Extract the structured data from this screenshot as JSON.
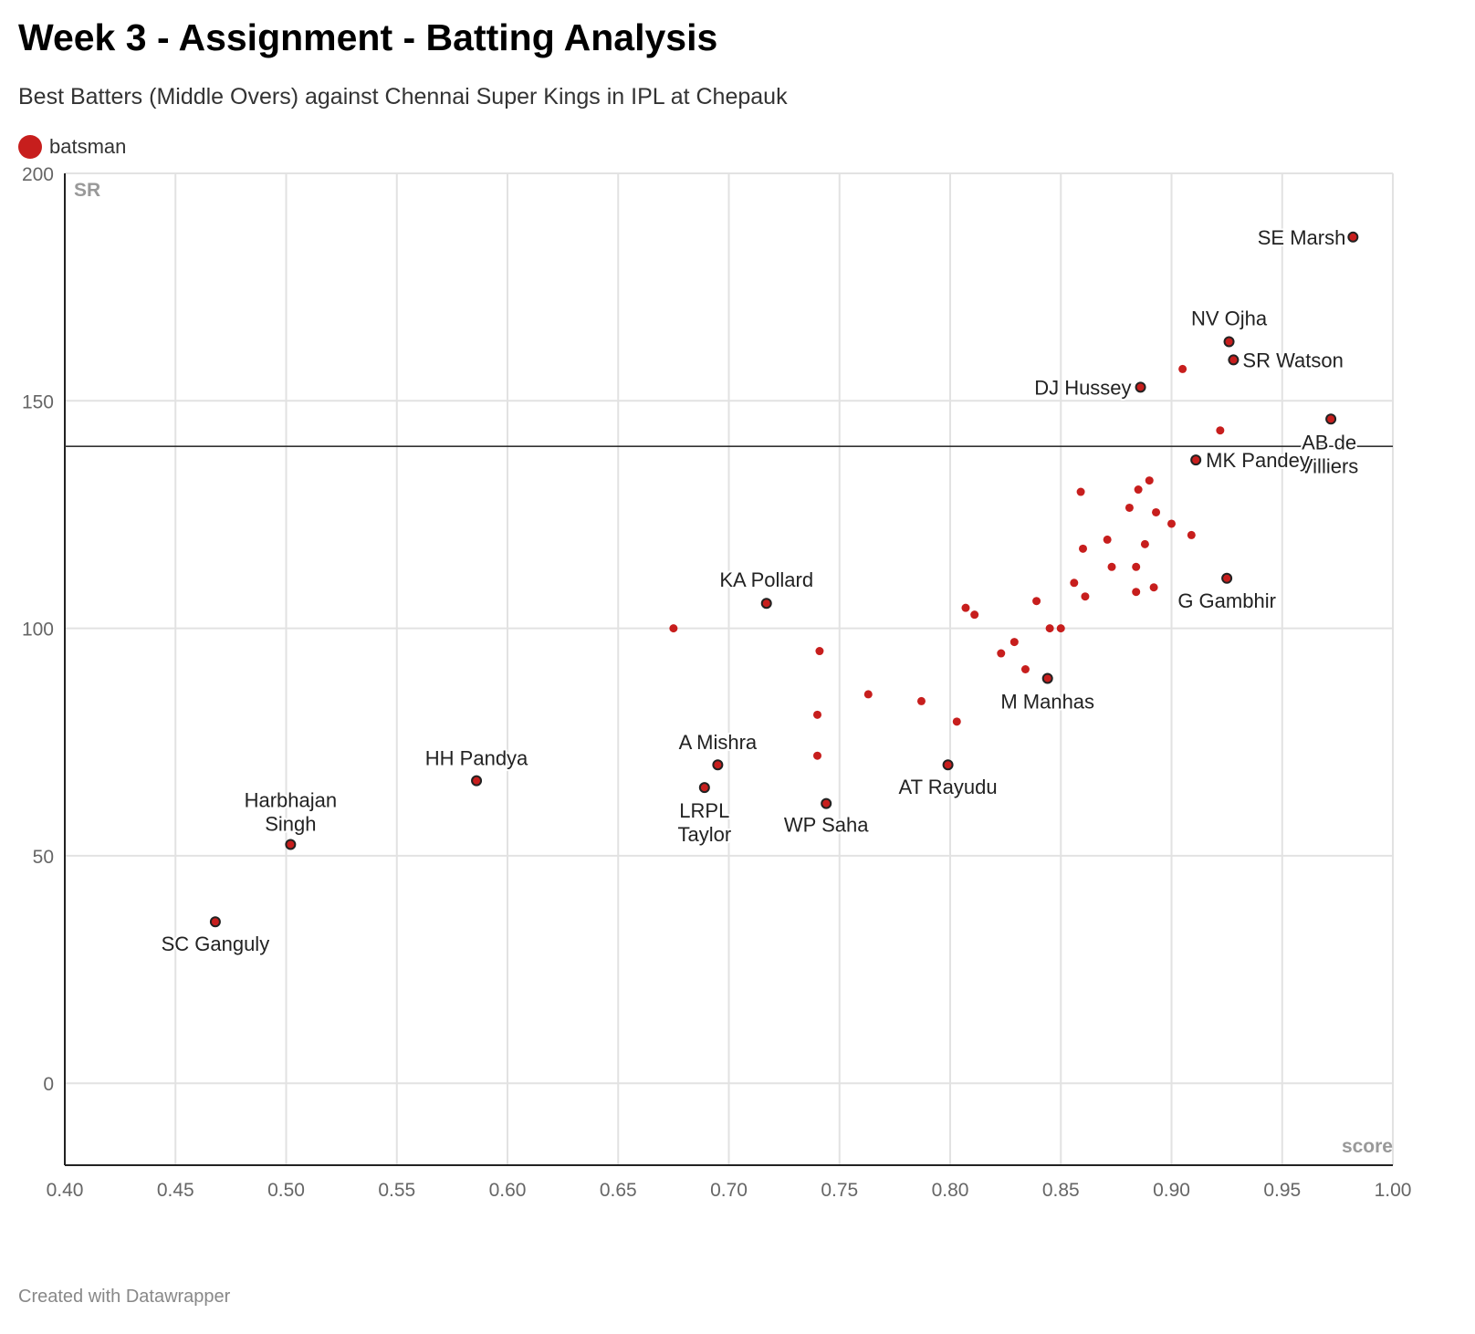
{
  "header": {
    "title": "Week 3 - Assignment - Batting Analysis",
    "subtitle": "Best Batters (Middle Overs) against Chennai Super Kings in IPL at Chepauk"
  },
  "legend": {
    "label": "batsman",
    "color": "#c71e1d"
  },
  "footer": {
    "text": "Created with Datawrapper"
  },
  "chart_data": {
    "type": "scatter",
    "xlabel": "score",
    "ylabel": "SR",
    "xlim": [
      0.4,
      1.0
    ],
    "ylim": [
      -18,
      200
    ],
    "x_ticks": [
      "0.40",
      "0.45",
      "0.50",
      "0.55",
      "0.60",
      "0.65",
      "0.70",
      "0.75",
      "0.80",
      "0.85",
      "0.90",
      "0.95",
      "1.00"
    ],
    "y_ticks": [
      "200",
      "150",
      "100",
      "50",
      "0"
    ],
    "grid": true,
    "reference_line_y": 140,
    "series": [
      {
        "name": "batsman",
        "color": "#c71e1d",
        "labeled_points": [
          {
            "label": [
              "SE Marsh"
            ],
            "x": 0.982,
            "y": 186,
            "anchor": "end",
            "dx": -8,
            "dy": 8
          },
          {
            "label": [
              "NV Ojha"
            ],
            "x": 0.926,
            "y": 163,
            "anchor": "middle",
            "dx": 0,
            "dy": -18
          },
          {
            "label": [
              "SR Watson"
            ],
            "x": 0.928,
            "y": 159,
            "anchor": "start",
            "dx": 10,
            "dy": 8
          },
          {
            "label": [
              "DJ Hussey"
            ],
            "x": 0.886,
            "y": 153,
            "anchor": "end",
            "dx": -10,
            "dy": 8
          },
          {
            "label": [
              "AB de",
              "Villiers"
            ],
            "x": 0.972,
            "y": 146,
            "anchor": "middle",
            "dx": -2,
            "dy": 33
          },
          {
            "label": [
              "MK Pandey"
            ],
            "x": 0.911,
            "y": 137,
            "anchor": "start",
            "dx": 11,
            "dy": 8
          },
          {
            "label": [
              "G Gambhir"
            ],
            "x": 0.925,
            "y": 111,
            "anchor": "middle",
            "dx": 0,
            "dy": 32
          },
          {
            "label": [
              "KA Pollard"
            ],
            "x": 0.717,
            "y": 105.5,
            "anchor": "middle",
            "dx": 0,
            "dy": -18
          },
          {
            "label": [
              "M Manhas"
            ],
            "x": 0.844,
            "y": 89,
            "anchor": "middle",
            "dx": 0,
            "dy": 33
          },
          {
            "label": [
              "HH Pandya"
            ],
            "x": 0.586,
            "y": 66.5,
            "anchor": "middle",
            "dx": 0,
            "dy": -17
          },
          {
            "label": [
              "A Mishra"
            ],
            "x": 0.695,
            "y": 70,
            "anchor": "middle",
            "dx": 0,
            "dy": -17
          },
          {
            "label": [
              "LRPL",
              "Taylor"
            ],
            "x": 0.689,
            "y": 65,
            "anchor": "middle",
            "dx": 0,
            "dy": 33
          },
          {
            "label": [
              "WP Saha"
            ],
            "x": 0.744,
            "y": 61.5,
            "anchor": "middle",
            "dx": 0,
            "dy": 31
          },
          {
            "label": [
              "AT Rayudu"
            ],
            "x": 0.799,
            "y": 70,
            "anchor": "middle",
            "dx": 0,
            "dy": 32
          },
          {
            "label": [
              "Harbhajan",
              "Singh"
            ],
            "x": 0.502,
            "y": 52.5,
            "anchor": "middle",
            "dx": 0,
            "dy": -41
          },
          {
            "label": [
              "SC Ganguly"
            ],
            "x": 0.468,
            "y": 35.5,
            "anchor": "middle",
            "dx": 0,
            "dy": 32
          }
        ],
        "points": [
          [
            0.905,
            157
          ],
          [
            0.922,
            143.5
          ],
          [
            0.89,
            132.5
          ],
          [
            0.885,
            130.5
          ],
          [
            0.859,
            130
          ],
          [
            0.881,
            126.5
          ],
          [
            0.893,
            125.5
          ],
          [
            0.9,
            123
          ],
          [
            0.909,
            120.5
          ],
          [
            0.871,
            119.5
          ],
          [
            0.888,
            118.5
          ],
          [
            0.86,
            117.5
          ],
          [
            0.873,
            113.5
          ],
          [
            0.884,
            113.5
          ],
          [
            0.856,
            110
          ],
          [
            0.892,
            109
          ],
          [
            0.884,
            108
          ],
          [
            0.861,
            107
          ],
          [
            0.839,
            106
          ],
          [
            0.807,
            104.5
          ],
          [
            0.811,
            103
          ],
          [
            0.845,
            100
          ],
          [
            0.85,
            100
          ],
          [
            0.675,
            100
          ],
          [
            0.829,
            97
          ],
          [
            0.823,
            94.5
          ],
          [
            0.741,
            95
          ],
          [
            0.834,
            91
          ],
          [
            0.763,
            85.5
          ],
          [
            0.787,
            84
          ],
          [
            0.74,
            81
          ],
          [
            0.803,
            79.5
          ],
          [
            0.74,
            72
          ]
        ]
      }
    ]
  }
}
